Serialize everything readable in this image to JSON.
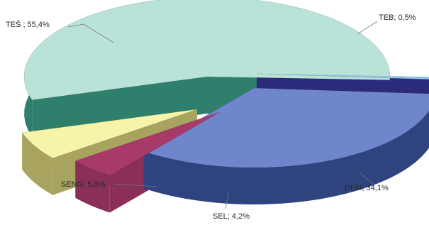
{
  "chart_data": {
    "type": "pie",
    "title": "",
    "style": "3d-exploded",
    "slices": [
      {
        "name": "TEŠ",
        "value": 55.4,
        "label": "TEŠ ; 55,4%",
        "top_color": "#b9e3d8",
        "side_color": "#2f7f6d"
      },
      {
        "name": "TEB",
        "value": 0.5,
        "label": "TEB; 0,5%",
        "top_color": "#8fc6e6",
        "side_color": "#2c2a7a"
      },
      {
        "name": "DEM",
        "value": 34.1,
        "label": "DEM; 34,1%",
        "top_color": "#6f86cc",
        "side_color": "#2f437f"
      },
      {
        "name": "SEL",
        "value": 4.2,
        "label": "SEL; 4,2%",
        "top_color": "#a83a6a",
        "side_color": "#8a2f57"
      },
      {
        "name": "SENG",
        "value": 5.8,
        "label": "SENG; 5,8%",
        "top_color": "#f6f4a8",
        "side_color": "#a8a35f"
      }
    ]
  }
}
